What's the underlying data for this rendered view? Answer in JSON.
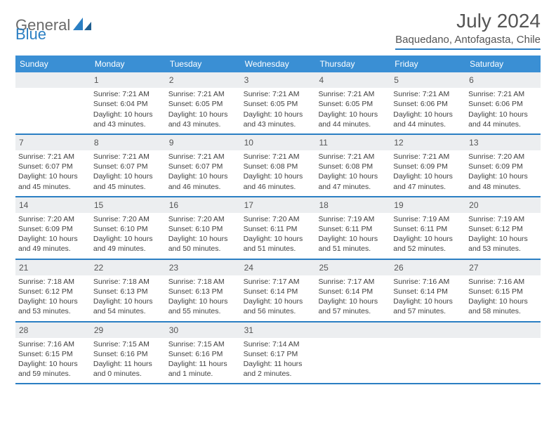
{
  "logo": {
    "text1": "General",
    "text2": "Blue"
  },
  "title": "July 2024",
  "location": "Baquedano, Antofagasta, Chile",
  "colors": {
    "header_bg": "#3a8fd4",
    "header_text": "#ffffff",
    "divider": "#2b7fc3",
    "daynum_bg": "#eceef0",
    "text": "#404040"
  },
  "weekdays": [
    "Sunday",
    "Monday",
    "Tuesday",
    "Wednesday",
    "Thursday",
    "Friday",
    "Saturday"
  ],
  "weeks": [
    [
      {
        "blank": true
      },
      {
        "num": "1",
        "sr": "Sunrise: 7:21 AM",
        "ss": "Sunset: 6:04 PM",
        "d1": "Daylight: 10 hours",
        "d2": "and 43 minutes."
      },
      {
        "num": "2",
        "sr": "Sunrise: 7:21 AM",
        "ss": "Sunset: 6:05 PM",
        "d1": "Daylight: 10 hours",
        "d2": "and 43 minutes."
      },
      {
        "num": "3",
        "sr": "Sunrise: 7:21 AM",
        "ss": "Sunset: 6:05 PM",
        "d1": "Daylight: 10 hours",
        "d2": "and 43 minutes."
      },
      {
        "num": "4",
        "sr": "Sunrise: 7:21 AM",
        "ss": "Sunset: 6:05 PM",
        "d1": "Daylight: 10 hours",
        "d2": "and 44 minutes."
      },
      {
        "num": "5",
        "sr": "Sunrise: 7:21 AM",
        "ss": "Sunset: 6:06 PM",
        "d1": "Daylight: 10 hours",
        "d2": "and 44 minutes."
      },
      {
        "num": "6",
        "sr": "Sunrise: 7:21 AM",
        "ss": "Sunset: 6:06 PM",
        "d1": "Daylight: 10 hours",
        "d2": "and 44 minutes."
      }
    ],
    [
      {
        "num": "7",
        "sr": "Sunrise: 7:21 AM",
        "ss": "Sunset: 6:07 PM",
        "d1": "Daylight: 10 hours",
        "d2": "and 45 minutes."
      },
      {
        "num": "8",
        "sr": "Sunrise: 7:21 AM",
        "ss": "Sunset: 6:07 PM",
        "d1": "Daylight: 10 hours",
        "d2": "and 45 minutes."
      },
      {
        "num": "9",
        "sr": "Sunrise: 7:21 AM",
        "ss": "Sunset: 6:07 PM",
        "d1": "Daylight: 10 hours",
        "d2": "and 46 minutes."
      },
      {
        "num": "10",
        "sr": "Sunrise: 7:21 AM",
        "ss": "Sunset: 6:08 PM",
        "d1": "Daylight: 10 hours",
        "d2": "and 46 minutes."
      },
      {
        "num": "11",
        "sr": "Sunrise: 7:21 AM",
        "ss": "Sunset: 6:08 PM",
        "d1": "Daylight: 10 hours",
        "d2": "and 47 minutes."
      },
      {
        "num": "12",
        "sr": "Sunrise: 7:21 AM",
        "ss": "Sunset: 6:09 PM",
        "d1": "Daylight: 10 hours",
        "d2": "and 47 minutes."
      },
      {
        "num": "13",
        "sr": "Sunrise: 7:20 AM",
        "ss": "Sunset: 6:09 PM",
        "d1": "Daylight: 10 hours",
        "d2": "and 48 minutes."
      }
    ],
    [
      {
        "num": "14",
        "sr": "Sunrise: 7:20 AM",
        "ss": "Sunset: 6:09 PM",
        "d1": "Daylight: 10 hours",
        "d2": "and 49 minutes."
      },
      {
        "num": "15",
        "sr": "Sunrise: 7:20 AM",
        "ss": "Sunset: 6:10 PM",
        "d1": "Daylight: 10 hours",
        "d2": "and 49 minutes."
      },
      {
        "num": "16",
        "sr": "Sunrise: 7:20 AM",
        "ss": "Sunset: 6:10 PM",
        "d1": "Daylight: 10 hours",
        "d2": "and 50 minutes."
      },
      {
        "num": "17",
        "sr": "Sunrise: 7:20 AM",
        "ss": "Sunset: 6:11 PM",
        "d1": "Daylight: 10 hours",
        "d2": "and 51 minutes."
      },
      {
        "num": "18",
        "sr": "Sunrise: 7:19 AM",
        "ss": "Sunset: 6:11 PM",
        "d1": "Daylight: 10 hours",
        "d2": "and 51 minutes."
      },
      {
        "num": "19",
        "sr": "Sunrise: 7:19 AM",
        "ss": "Sunset: 6:11 PM",
        "d1": "Daylight: 10 hours",
        "d2": "and 52 minutes."
      },
      {
        "num": "20",
        "sr": "Sunrise: 7:19 AM",
        "ss": "Sunset: 6:12 PM",
        "d1": "Daylight: 10 hours",
        "d2": "and 53 minutes."
      }
    ],
    [
      {
        "num": "21",
        "sr": "Sunrise: 7:18 AM",
        "ss": "Sunset: 6:12 PM",
        "d1": "Daylight: 10 hours",
        "d2": "and 53 minutes."
      },
      {
        "num": "22",
        "sr": "Sunrise: 7:18 AM",
        "ss": "Sunset: 6:13 PM",
        "d1": "Daylight: 10 hours",
        "d2": "and 54 minutes."
      },
      {
        "num": "23",
        "sr": "Sunrise: 7:18 AM",
        "ss": "Sunset: 6:13 PM",
        "d1": "Daylight: 10 hours",
        "d2": "and 55 minutes."
      },
      {
        "num": "24",
        "sr": "Sunrise: 7:17 AM",
        "ss": "Sunset: 6:14 PM",
        "d1": "Daylight: 10 hours",
        "d2": "and 56 minutes."
      },
      {
        "num": "25",
        "sr": "Sunrise: 7:17 AM",
        "ss": "Sunset: 6:14 PM",
        "d1": "Daylight: 10 hours",
        "d2": "and 57 minutes."
      },
      {
        "num": "26",
        "sr": "Sunrise: 7:16 AM",
        "ss": "Sunset: 6:14 PM",
        "d1": "Daylight: 10 hours",
        "d2": "and 57 minutes."
      },
      {
        "num": "27",
        "sr": "Sunrise: 7:16 AM",
        "ss": "Sunset: 6:15 PM",
        "d1": "Daylight: 10 hours",
        "d2": "and 58 minutes."
      }
    ],
    [
      {
        "num": "28",
        "sr": "Sunrise: 7:16 AM",
        "ss": "Sunset: 6:15 PM",
        "d1": "Daylight: 10 hours",
        "d2": "and 59 minutes."
      },
      {
        "num": "29",
        "sr": "Sunrise: 7:15 AM",
        "ss": "Sunset: 6:16 PM",
        "d1": "Daylight: 11 hours",
        "d2": "and 0 minutes."
      },
      {
        "num": "30",
        "sr": "Sunrise: 7:15 AM",
        "ss": "Sunset: 6:16 PM",
        "d1": "Daylight: 11 hours",
        "d2": "and 1 minute."
      },
      {
        "num": "31",
        "sr": "Sunrise: 7:14 AM",
        "ss": "Sunset: 6:17 PM",
        "d1": "Daylight: 11 hours",
        "d2": "and 2 minutes."
      },
      {
        "blank": true
      },
      {
        "blank": true
      },
      {
        "blank": true
      }
    ]
  ]
}
